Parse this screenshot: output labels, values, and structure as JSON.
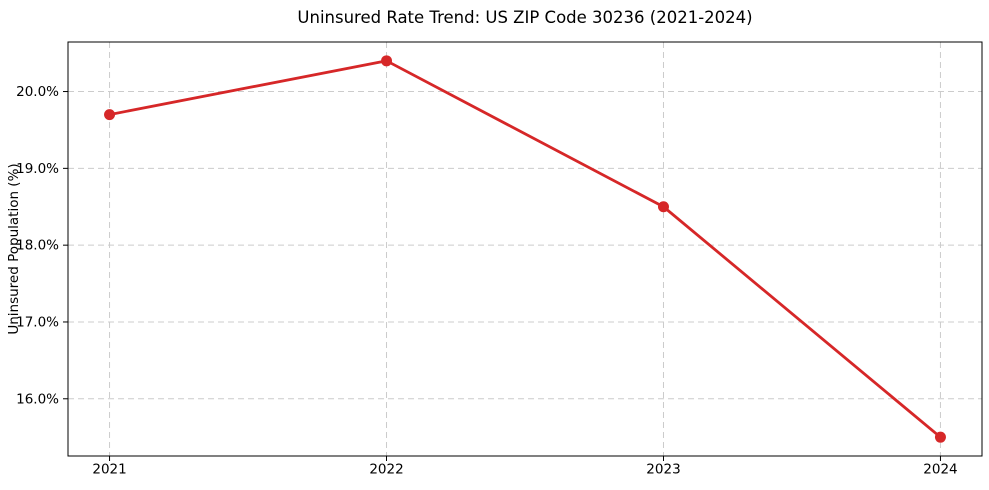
{
  "chart_data": {
    "type": "line",
    "title": "Uninsured Rate Trend: US ZIP Code 30236 (2021-2024)",
    "xlabel": "",
    "ylabel": "Uninsured Population (%)",
    "categories": [
      "2021",
      "2022",
      "2023",
      "2024"
    ],
    "values": [
      19.7,
      20.4,
      18.5,
      15.5
    ],
    "ytick_values": [
      16.0,
      17.0,
      18.0,
      19.0,
      20.0
    ],
    "ytick_labels": [
      "16.0%",
      "17.0%",
      "18.0%",
      "19.0%",
      "20.0%"
    ],
    "ylim": [
      15.255,
      20.645
    ],
    "grid": true,
    "legend_position": "none",
    "colors": {
      "line": "#d62728",
      "marker": "#d62728",
      "grid": "#cccccc",
      "spine": "#000000",
      "text": "#000000",
      "background": "#ffffff"
    }
  }
}
